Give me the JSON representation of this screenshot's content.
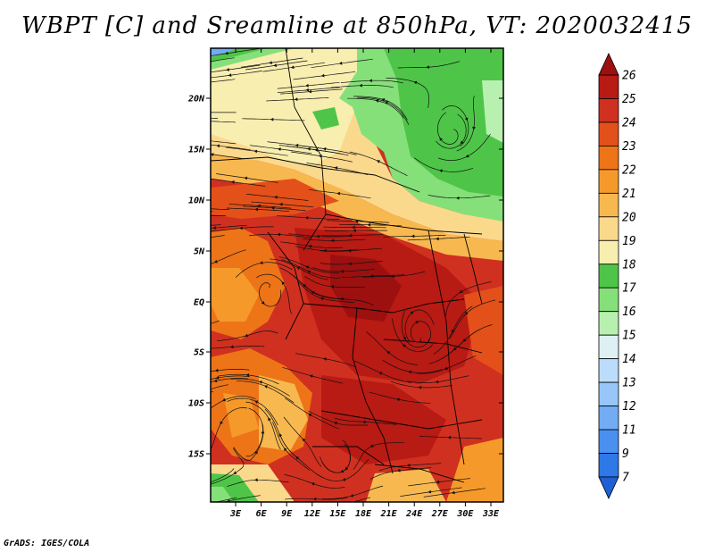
{
  "title": "WBPT [C] and Sreamline at 850hPa, VT: 2020032415",
  "credit": "GrADS: IGES/COLA",
  "map": {
    "variable": "WBPT [C]",
    "overlay": "Sreamline",
    "level": "850hPa",
    "valid_time": "2020032415",
    "lat_labels": [
      "20N",
      "15N",
      "10N",
      "5N",
      "EQ",
      "5S",
      "10S",
      "15S"
    ],
    "lon_labels": [
      "3E",
      "6E",
      "9E",
      "12E",
      "15E",
      "18E",
      "21E",
      "24E",
      "27E",
      "30E",
      "33E"
    ]
  },
  "colorbar": {
    "labels": [
      "7",
      "9",
      "11",
      "12",
      "13",
      "14",
      "15",
      "16",
      "17",
      "18",
      "19",
      "20",
      "21",
      "22",
      "23",
      "24",
      "25",
      "26"
    ],
    "colors": [
      "#1f5fd6",
      "#2e78e8",
      "#4a90f0",
      "#72acf5",
      "#98c6f8",
      "#bcdcfb",
      "#dff0f5",
      "#b8f0b0",
      "#86e07a",
      "#4ec548",
      "#f8eeb0",
      "#fbd98c",
      "#f8b850",
      "#f59a2a",
      "#ee7418",
      "#e4501a",
      "#d03020",
      "#b81a14",
      "#9c1010"
    ],
    "low_arrow_color": "#1f5fd6",
    "high_arrow_color": "#9c1010"
  },
  "field_colors": {
    "t26": "#9c1010",
    "t25": "#b81a14",
    "t24": "#d03020",
    "t23": "#e4501a",
    "t22": "#ee7418",
    "t21": "#f59a2a",
    "t20": "#f8b850",
    "t19": "#fbd98c",
    "t18": "#f8eeb0",
    "t17": "#4ec548",
    "t16": "#86e07a",
    "t15": "#b8f0b0",
    "t14": "#72acf5"
  }
}
